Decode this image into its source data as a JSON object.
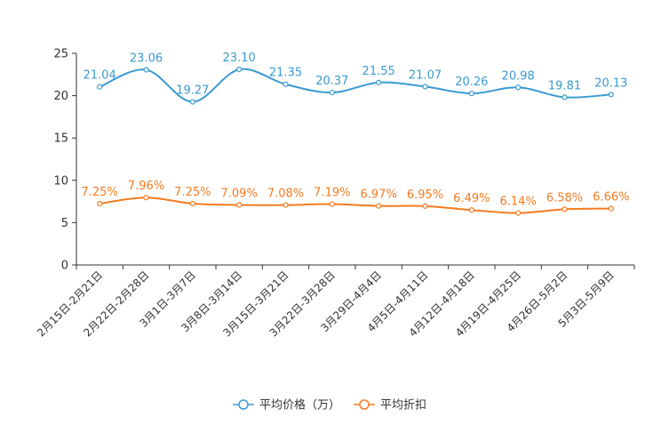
{
  "chart_data": {
    "type": "line",
    "categories": [
      "2月15日-2月21日",
      "2月22日-2月28日",
      "3月1日-3月7日",
      "3月8日-3月14日",
      "3月15日-3月21日",
      "3月22日-3月28日",
      "3月29日-4月4日",
      "4月5日-4月11日",
      "4月12日-4月18日",
      "4月19日-4月25日",
      "4月26日-5月2日",
      "5月3日-5月9日"
    ],
    "ylim": [
      0,
      25
    ],
    "yticks": [
      "0",
      "5",
      "10",
      "15",
      "20",
      "25"
    ],
    "series": [
      {
        "name": "平均价格（万）",
        "color": "#3a9ad1",
        "values": [
          21.04,
          23.06,
          19.27,
          23.1,
          21.35,
          20.37,
          21.55,
          21.07,
          20.26,
          20.98,
          19.81,
          20.13
        ],
        "labels": [
          "21.04",
          "23.06",
          "19.27",
          "23.10",
          "21.35",
          "20.37",
          "21.55",
          "21.07",
          "20.26",
          "20.98",
          "19.81",
          "20.13"
        ]
      },
      {
        "name": "平均折扣",
        "color": "#f47b20",
        "values": [
          7.25,
          7.96,
          7.25,
          7.09,
          7.08,
          7.19,
          6.97,
          6.95,
          6.49,
          6.14,
          6.58,
          6.66
        ],
        "labels": [
          "7.25%",
          "7.96%",
          "7.25%",
          "7.09%",
          "7.08%",
          "7.19%",
          "6.97%",
          "6.95%",
          "6.49%",
          "6.14%",
          "6.58%",
          "6.66%"
        ]
      }
    ],
    "legend_position": "bottom-center",
    "grid": false
  }
}
